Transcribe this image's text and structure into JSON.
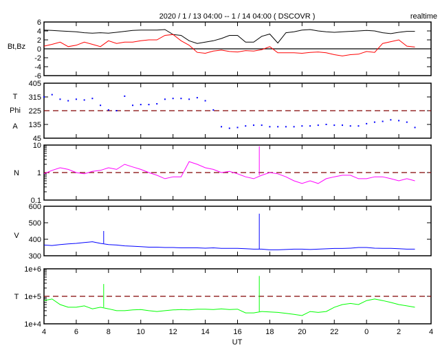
{
  "chart_data": {
    "type": "line",
    "title": "2020 / 1 / 13   04:00 --  1 / 14   04:00 ( DSCOVR )",
    "corner_label": "realtime",
    "xlabel": "UT",
    "xlim": [
      4,
      28
    ],
    "x_tick_labels": [
      "4",
      "6",
      "8",
      "10",
      "12",
      "14",
      "16",
      "18",
      "20",
      "22",
      "0",
      "2",
      "4"
    ],
    "x": [
      4,
      4.5,
      5,
      5.5,
      6,
      6.5,
      7,
      7.5,
      8,
      8.5,
      9,
      9.5,
      10,
      10.5,
      11,
      11.5,
      12,
      12.5,
      13,
      13.5,
      14,
      14.5,
      15,
      15.5,
      16,
      16.5,
      17,
      17.5,
      18,
      18.5,
      19,
      19.5,
      20,
      20.5,
      21,
      21.5,
      22,
      22.5,
      23,
      23.5,
      24,
      24.5,
      25,
      25.5,
      26,
      26.5,
      27
    ],
    "panels": [
      {
        "label": "Bt,Bz",
        "scale": "linear",
        "ylim": [
          -6,
          6
        ],
        "tick_labels": [
          "6",
          "4",
          "2",
          "0",
          "-2",
          "-4",
          "-6"
        ],
        "tick_values": [
          6,
          4,
          2,
          0,
          -2,
          -4,
          -6
        ],
        "reference_line": {
          "value": 0,
          "style": "solid"
        },
        "series": [
          {
            "name": "Bt",
            "color": "#000000",
            "style": "line",
            "values": [
              4.2,
              4.1,
              4.0,
              3.9,
              3.8,
              3.6,
              3.5,
              3.6,
              3.5,
              3.7,
              3.9,
              4.1,
              4.2,
              4.2,
              4.2,
              4.3,
              3.2,
              3.0,
              1.8,
              1.2,
              1.5,
              1.8,
              2.3,
              3.0,
              3.0,
              1.5,
              1.5,
              2.8,
              3.3,
              1.3,
              3.6,
              3.8,
              4.2,
              4.3,
              4.0,
              3.8,
              3.7,
              3.8,
              3.9,
              4.0,
              4.1,
              4.0,
              3.6,
              3.4,
              3.7,
              3.9,
              3.9
            ]
          },
          {
            "name": "Bz",
            "color": "#ff0000",
            "style": "line",
            "values": [
              0.6,
              1.0,
              1.5,
              0.5,
              0.8,
              1.5,
              1.0,
              0.5,
              1.8,
              1.2,
              1.5,
              1.5,
              1.8,
              2.0,
              2.0,
              3.0,
              3.2,
              1.8,
              0.8,
              -0.8,
              -1.0,
              -0.5,
              -0.3,
              -0.6,
              -0.7,
              -0.4,
              -0.5,
              -0.2,
              0.5,
              -0.9,
              -0.9,
              -0.9,
              -1.0,
              -0.8,
              -0.7,
              -0.9,
              -1.3,
              -1.6,
              -1.3,
              -1.2,
              -0.6,
              -0.8,
              1.2,
              1.6,
              2.0,
              0.6,
              0.4
            ]
          }
        ]
      },
      {
        "labels": [
          "T",
          "Phi",
          "A"
        ],
        "scale": "linear",
        "ylim": [
          45,
          405
        ],
        "tick_labels": [
          "405",
          "315",
          "225",
          "135",
          "45"
        ],
        "tick_values": [
          405,
          315,
          225,
          135,
          45
        ],
        "reference_line": {
          "value": 225,
          "style": "dashed"
        },
        "series": [
          {
            "name": "Phi",
            "color": "#0000ff",
            "style": "dots",
            "values": [
              315,
              330,
              300,
              290,
              300,
              295,
              305,
              260,
              230,
              225,
              320,
              260,
              265,
              265,
              270,
              300,
              305,
              305,
              300,
              310,
              290,
              230,
              120,
              110,
              115,
              125,
              130,
              130,
              120,
              120,
              120,
              120,
              125,
              125,
              130,
              135,
              130,
              130,
              125,
              125,
              140,
              150,
              155,
              165,
              160,
              150,
              115
            ]
          }
        ]
      },
      {
        "label": "N",
        "scale": "log",
        "ylim": [
          0.1,
          10
        ],
        "tick_labels": [
          "10",
          "1",
          "0.1"
        ],
        "tick_values": [
          10,
          1,
          0.1
        ],
        "reference_line": {
          "value": 1,
          "style": "dashed"
        },
        "series": [
          {
            "name": "N",
            "color": "#ff00ff",
            "style": "line",
            "values": [
              0.9,
              1.2,
              1.5,
              1.3,
              1.0,
              0.9,
              1.1,
              1.2,
              1.5,
              1.3,
              2.0,
              1.6,
              1.3,
              1.0,
              0.8,
              0.6,
              0.7,
              0.7,
              2.5,
              2.0,
              1.5,
              1.3,
              1.0,
              1.1,
              0.9,
              0.7,
              0.6,
              0.8,
              1.0,
              0.9,
              0.7,
              0.5,
              0.4,
              0.5,
              0.4,
              0.6,
              0.7,
              0.8,
              0.8,
              0.6,
              0.6,
              0.7,
              0.7,
              0.6,
              0.5,
              0.6,
              0.5
            ],
            "spikes": [
              [
                17.35,
                9
              ]
            ]
          }
        ]
      },
      {
        "label": "V",
        "scale": "linear",
        "ylim": [
          300,
          600
        ],
        "tick_labels": [
          "600",
          "500",
          "400",
          "300"
        ],
        "tick_values": [
          600,
          500,
          400,
          300
        ],
        "series": [
          {
            "name": "V",
            "color": "#0000ff",
            "style": "line",
            "values": [
              365,
              362,
              368,
              372,
              375,
              380,
              385,
              375,
              368,
              365,
              360,
              358,
              355,
              352,
              352,
              350,
              350,
              348,
              348,
              348,
              346,
              348,
              345,
              345,
              345,
              343,
              340,
              340,
              336,
              336,
              338,
              340,
              340,
              338,
              340,
              342,
              344,
              344,
              346,
              350,
              350,
              346,
              345,
              345,
              343,
              340,
              340
            ],
            "spikes": [
              [
                7.7,
                450
              ],
              [
                17.35,
                555
              ]
            ]
          }
        ]
      },
      {
        "label": "T",
        "scale": "log",
        "ylim": [
          10000,
          1000000
        ],
        "tick_labels": [
          "1e+6",
          "1e+5",
          "1e+4"
        ],
        "tick_values": [
          1000000,
          100000,
          10000
        ],
        "reference_line": {
          "value": 100000,
          "style": "dashed"
        },
        "series": [
          {
            "name": "T",
            "color": "#00ff00",
            "style": "line",
            "values": [
              70000,
              80000,
              50000,
              40000,
              40000,
              45000,
              35000,
              40000,
              35000,
              30000,
              30000,
              32000,
              33000,
              30000,
              28000,
              30000,
              32000,
              33000,
              32000,
              34000,
              34000,
              33000,
              35000,
              33000,
              34000,
              25000,
              25000,
              28000,
              27000,
              26000,
              24000,
              22000,
              20000,
              28000,
              26000,
              28000,
              40000,
              50000,
              55000,
              50000,
              70000,
              80000,
              70000,
              60000,
              50000,
              45000,
              40000
            ],
            "spikes": [
              [
                7.7,
                280000
              ],
              [
                17.35,
                550000
              ]
            ]
          }
        ]
      }
    ]
  }
}
